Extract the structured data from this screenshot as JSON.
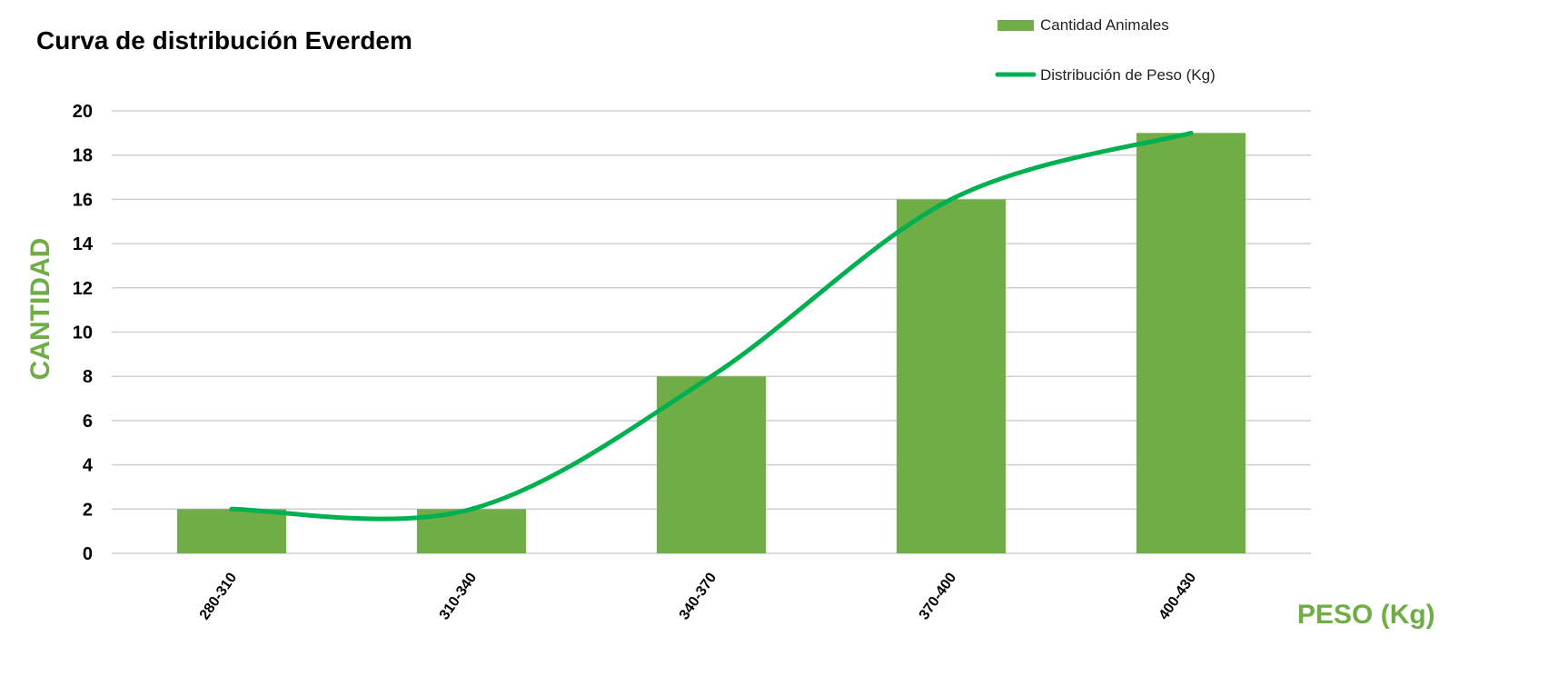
{
  "chart_data": {
    "type": "bar",
    "title": "Curva de distribución Everdem",
    "xlabel": "PESO (Kg)",
    "ylabel": "CANTIDAD",
    "categories": [
      "280-310",
      "310-340",
      "340-370",
      "370-400",
      "400-430"
    ],
    "series": [
      {
        "name": "Cantidad Animales",
        "type": "bar",
        "values": [
          2,
          2,
          8,
          16,
          19
        ],
        "color": "#70AD47"
      },
      {
        "name": "Distribución de Peso (Kg)",
        "type": "line",
        "smooth": true,
        "values": [
          2,
          2,
          8,
          16,
          19
        ],
        "color": "#00B050"
      }
    ],
    "ylim": [
      0,
      20
    ],
    "yticks": [
      0,
      2,
      4,
      6,
      8,
      10,
      12,
      14,
      16,
      18,
      20
    ],
    "grid": true,
    "legend_position": "top-right",
    "axis_label_color": "#70AD47"
  }
}
